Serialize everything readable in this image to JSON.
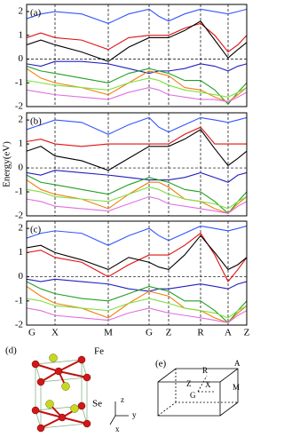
{
  "chart_data": [
    {
      "type": "line",
      "annotation": "(a)",
      "xlim": [
        0,
        248
      ],
      "ylim": [
        -2,
        2.3
      ],
      "yticks": [
        -2,
        -1,
        0,
        1,
        2
      ],
      "x": [
        0,
        16,
        32,
        62,
        92,
        115,
        138,
        149,
        160,
        178,
        196,
        212,
        227,
        238,
        248
      ],
      "series": [
        {
          "color": "#3355ff",
          "values": [
            1.7,
            1.9,
            2.0,
            1.9,
            1.5,
            1.9,
            2.1,
            1.8,
            1.6,
            1.9,
            2.1,
            2.0,
            1.9,
            2.0,
            2.1
          ]
        },
        {
          "color": "#e01010",
          "values": [
            0.9,
            1.1,
            0.9,
            0.8,
            0.4,
            0.9,
            1.0,
            1.0,
            1.0,
            1.3,
            1.5,
            1.0,
            0.3,
            0.6,
            1.0
          ]
        },
        {
          "color": "#000000",
          "values": [
            0.6,
            0.8,
            0.6,
            0.3,
            -0.1,
            0.5,
            0.9,
            0.9,
            0.9,
            1.2,
            1.6,
            0.8,
            0.05,
            0.4,
            0.7
          ]
        },
        {
          "color": "#2020c0",
          "values": [
            -0.2,
            -0.3,
            -0.1,
            -0.1,
            -0.2,
            -0.4,
            -0.6,
            -0.5,
            -0.5,
            -0.4,
            -0.2,
            -0.3,
            -0.5,
            -0.3,
            -0.2
          ]
        },
        {
          "color": "#22a022",
          "values": [
            -0.3,
            -0.5,
            -0.6,
            -0.8,
            -1.0,
            -0.6,
            -0.4,
            -0.5,
            -0.6,
            -0.9,
            -0.9,
            -1.3,
            -1.9,
            -1.4,
            -1.0
          ]
        },
        {
          "color": "#f08010",
          "values": [
            -0.4,
            -0.8,
            -1.0,
            -1.2,
            -1.5,
            -1.0,
            -0.5,
            -0.6,
            -0.7,
            -1.2,
            -1.3,
            -1.6,
            -1.8,
            -1.5,
            -1.2
          ]
        },
        {
          "color": "#80e040",
          "values": [
            -0.9,
            -1.0,
            -1.1,
            -1.2,
            -1.3,
            -1.0,
            -0.8,
            -0.9,
            -1.1,
            -1.3,
            -1.4,
            -1.5,
            -1.6,
            -1.4,
            -1.2
          ]
        },
        {
          "color": "#e070e0",
          "values": [
            -1.3,
            -1.4,
            -1.5,
            -1.6,
            -1.7,
            -1.4,
            -1.2,
            -1.3,
            -1.5,
            -1.6,
            -1.7,
            -1.7,
            -1.8,
            -1.6,
            -1.4
          ]
        }
      ]
    },
    {
      "type": "line",
      "annotation": "(b)",
      "y_label": "Energy(eV)",
      "xlim": [
        0,
        248
      ],
      "ylim": [
        -2,
        2.3
      ],
      "yticks": [
        -2,
        -1,
        0,
        1,
        2
      ],
      "x": [
        0,
        16,
        32,
        62,
        92,
        115,
        138,
        149,
        160,
        178,
        196,
        212,
        227,
        238,
        248
      ],
      "series": [
        {
          "color": "#3355ff",
          "values": [
            1.6,
            1.8,
            2.0,
            1.9,
            1.4,
            1.8,
            2.1,
            1.7,
            1.5,
            1.8,
            2.1,
            2.0,
            1.9,
            2.0,
            2.1
          ]
        },
        {
          "color": "#e01010",
          "values": [
            1.1,
            1.2,
            1.0,
            0.9,
            1.0,
            1.0,
            1.0,
            1.0,
            1.0,
            1.4,
            1.7,
            1.0,
            1.0,
            1.0,
            1.0
          ]
        },
        {
          "color": "#000000",
          "values": [
            0.7,
            0.9,
            0.5,
            0.3,
            -0.1,
            0.4,
            0.9,
            0.9,
            0.9,
            1.2,
            1.6,
            0.8,
            0.1,
            0.4,
            0.7
          ]
        },
        {
          "color": "#2020c0",
          "values": [
            -0.2,
            -0.3,
            -0.1,
            -0.2,
            -0.3,
            -0.4,
            -0.5,
            -0.5,
            -0.5,
            -0.4,
            -0.2,
            -0.4,
            -0.6,
            -0.3,
            -0.2
          ]
        },
        {
          "color": "#22a022",
          "values": [
            -0.3,
            -0.6,
            -0.7,
            -0.9,
            -1.1,
            -0.7,
            -0.4,
            -0.5,
            -0.6,
            -0.9,
            -1.0,
            -1.4,
            -1.9,
            -1.4,
            -1.0
          ]
        },
        {
          "color": "#f08010",
          "values": [
            -0.5,
            -0.9,
            -1.1,
            -1.3,
            -1.7,
            -1.1,
            -0.6,
            -0.6,
            -0.8,
            -1.3,
            -1.4,
            -1.7,
            -1.9,
            -1.5,
            -1.2
          ]
        },
        {
          "color": "#80e040",
          "values": [
            -0.9,
            -1.0,
            -1.2,
            -1.3,
            -1.4,
            -1.1,
            -0.8,
            -0.9,
            -1.1,
            -1.3,
            -1.4,
            -1.5,
            -1.7,
            -1.4,
            -1.2
          ]
        },
        {
          "color": "#e070e0",
          "values": [
            -1.3,
            -1.4,
            -1.6,
            -1.7,
            -1.8,
            -1.5,
            -1.2,
            -1.3,
            -1.5,
            -1.6,
            -1.7,
            -1.8,
            -1.9,
            -1.6,
            -1.4
          ]
        }
      ]
    },
    {
      "type": "line",
      "annotation": "(c)",
      "xlim": [
        0,
        248
      ],
      "ylim": [
        -2,
        2.3
      ],
      "yticks": [
        -2,
        -1,
        0,
        1,
        2
      ],
      "xticks": [
        {
          "value": 0,
          "label": "G"
        },
        {
          "value": 32,
          "label": "X"
        },
        {
          "value": 92,
          "label": "M"
        },
        {
          "value": 138,
          "label": "G"
        },
        {
          "value": 160,
          "label": "Z"
        },
        {
          "value": 196,
          "label": "R"
        },
        {
          "value": 227,
          "label": "A"
        },
        {
          "value": 248,
          "label": "Z"
        }
      ],
      "x": [
        0,
        16,
        32,
        62,
        92,
        115,
        138,
        149,
        160,
        178,
        196,
        212,
        227,
        238,
        248
      ],
      "series": [
        {
          "color": "#3355ff",
          "values": [
            1.6,
            1.8,
            1.9,
            1.8,
            1.3,
            1.7,
            2.0,
            1.7,
            1.5,
            1.8,
            2.1,
            2.0,
            1.9,
            2.0,
            2.1
          ]
        },
        {
          "color": "#e01010",
          "values": [
            1.0,
            1.1,
            0.8,
            0.6,
            0.0,
            0.5,
            0.9,
            0.9,
            0.9,
            1.3,
            1.8,
            0.9,
            -0.2,
            0.3,
            0.8
          ]
        },
        {
          "color": "#000000",
          "values": [
            1.2,
            1.3,
            1.0,
            0.7,
            0.3,
            0.8,
            0.6,
            0.4,
            0.3,
            0.9,
            1.7,
            1.0,
            0.3,
            0.5,
            0.8
          ]
        },
        {
          "color": "#2020c0",
          "values": [
            -0.1,
            -0.2,
            -0.1,
            -0.2,
            -0.3,
            -0.5,
            -0.6,
            -0.5,
            -0.5,
            -0.4,
            -0.3,
            -0.4,
            -0.5,
            -0.3,
            -0.2
          ]
        },
        {
          "color": "#22a022",
          "values": [
            -0.2,
            -0.5,
            -0.7,
            -0.9,
            -1.0,
            -0.7,
            -0.4,
            -0.5,
            -0.6,
            -1.0,
            -1.0,
            -1.4,
            -1.9,
            -1.4,
            -1.0
          ]
        },
        {
          "color": "#f08010",
          "values": [
            -0.4,
            -0.8,
            -1.1,
            -1.3,
            -1.7,
            -1.1,
            -0.6,
            -0.7,
            -0.8,
            -1.3,
            -1.4,
            -1.7,
            -1.9,
            -1.5,
            -1.2
          ]
        },
        {
          "color": "#80e040",
          "values": [
            -0.9,
            -1.0,
            -1.2,
            -1.3,
            -1.4,
            -1.1,
            -0.9,
            -1.0,
            -1.1,
            -1.3,
            -1.4,
            -1.5,
            -1.7,
            -1.4,
            -1.2
          ]
        },
        {
          "color": "#e070e0",
          "values": [
            -1.3,
            -1.4,
            -1.6,
            -1.7,
            -1.8,
            -1.5,
            -1.3,
            -1.4,
            -1.5,
            -1.6,
            -1.7,
            -1.8,
            -1.9,
            -1.6,
            -1.4
          ]
        }
      ]
    }
  ],
  "panel_d": {
    "label": "(d)",
    "fe": "Fe",
    "se": "Se",
    "axis_z": "z",
    "axis_y": "y",
    "axis_x": "x"
  },
  "panel_e": {
    "label": "(e)",
    "r": "R",
    "a": "A",
    "z": "Z",
    "x": "X",
    "m": "M",
    "g": "G"
  }
}
